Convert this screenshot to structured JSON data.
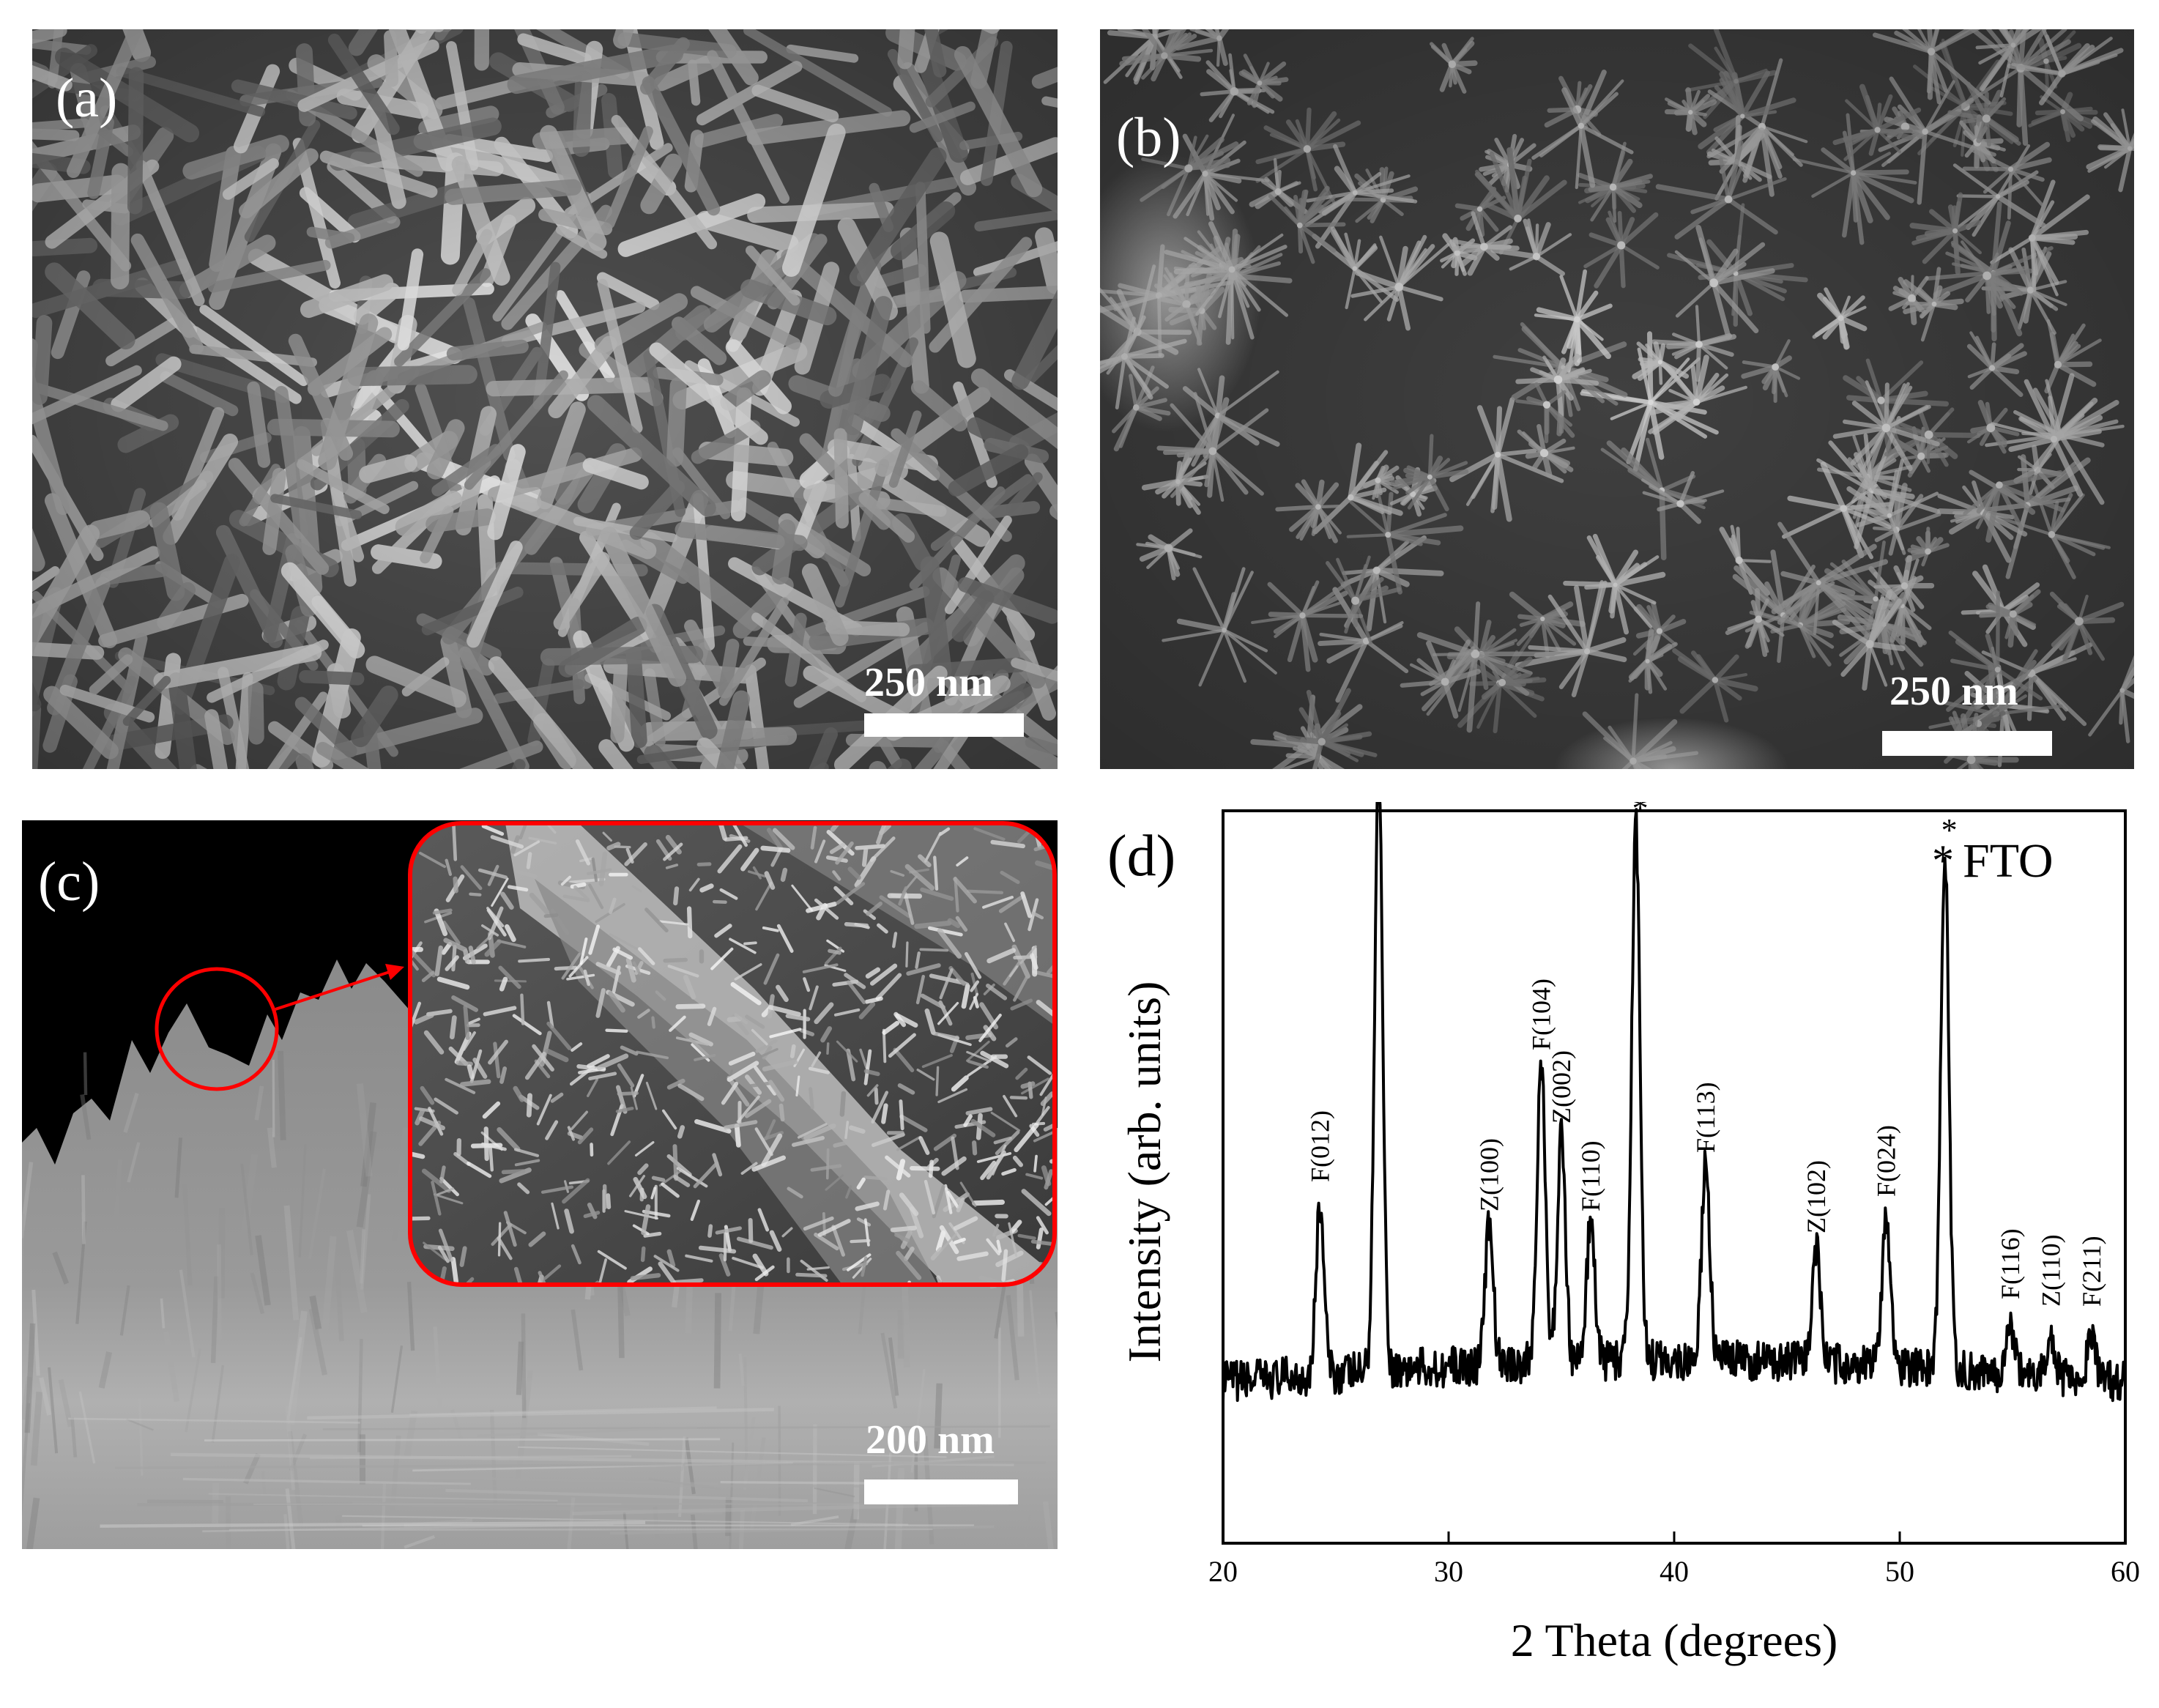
{
  "figure": {
    "panels": [
      {
        "id": "a",
        "label": "(a)",
        "kind": "sem-image",
        "texture": "dense-nanorods",
        "scale_bar": "250 nm"
      },
      {
        "id": "b",
        "label": "(b)",
        "kind": "sem-image",
        "texture": "star-like-nanostructures",
        "scale_bar": "250 nm"
      },
      {
        "id": "c",
        "label": "(c)",
        "kind": "sem-cross-section",
        "texture": "film-cross-section-with-zoom-inset",
        "scale_bar": "200 nm"
      },
      {
        "id": "d",
        "label": "(d)",
        "kind": "xrd-pattern"
      }
    ],
    "colors": {
      "inset_border": "#ff0000",
      "pattern_line": "#000000",
      "scale_bar": "#ffffff"
    },
    "icons": [
      "zoom-circle-icon",
      "arrow-icon"
    ]
  },
  "chart_data": {
    "type": "line",
    "title": "",
    "xlabel": "2 Theta (degrees)",
    "ylabel": "Intensity (arb. units)",
    "xlim": [
      20,
      60
    ],
    "xticks": [
      20,
      30,
      40,
      50,
      60
    ],
    "y_ticks_shown": false,
    "grid": false,
    "legend": {
      "symbol": "*",
      "text": "FTO",
      "placement": "top-right"
    },
    "baseline": 0.22,
    "peaks": [
      {
        "x": 24.3,
        "height": 0.23,
        "label": "F(012)"
      },
      {
        "x": 26.9,
        "height": 0.82,
        "label": "*"
      },
      {
        "x": 31.8,
        "height": 0.19,
        "label": "Z(100)"
      },
      {
        "x": 34.1,
        "height": 0.41,
        "label": "F(104)"
      },
      {
        "x": 35.0,
        "height": 0.31,
        "label": "Z(002)"
      },
      {
        "x": 36.3,
        "height": 0.19,
        "label": "F(110)"
      },
      {
        "x": 38.3,
        "height": 0.73,
        "label": "*"
      },
      {
        "x": 41.4,
        "height": 0.27,
        "label": "F(113)"
      },
      {
        "x": 46.3,
        "height": 0.16,
        "label": "Z(102)"
      },
      {
        "x": 49.4,
        "height": 0.21,
        "label": "F(024)"
      },
      {
        "x": 52.0,
        "height": 0.7,
        "label": "*"
      },
      {
        "x": 54.9,
        "height": 0.07,
        "label": "F(116)"
      },
      {
        "x": 56.7,
        "height": 0.06,
        "label": "Z(110)"
      },
      {
        "x": 58.5,
        "height": 0.06,
        "label": "F(211)"
      }
    ]
  }
}
